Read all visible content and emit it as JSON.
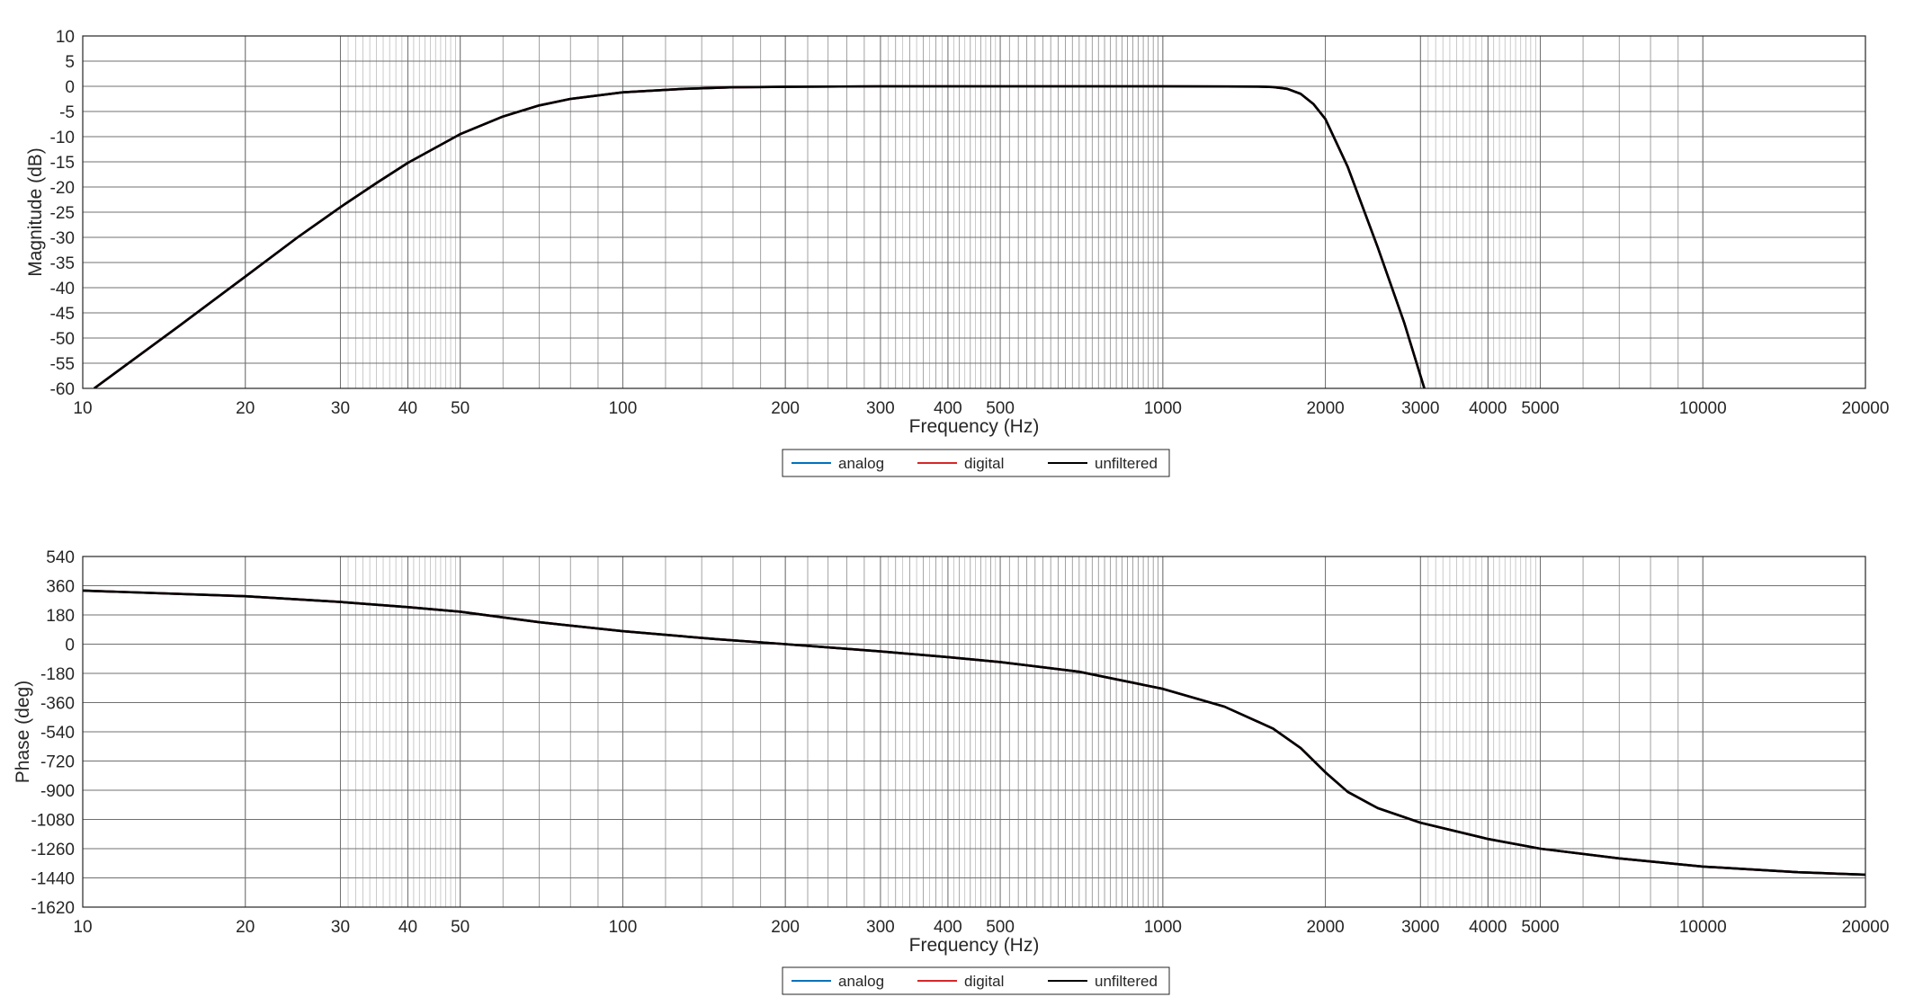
{
  "chart_data": [
    {
      "type": "line",
      "xlabel": "Frequency (Hz)",
      "ylabel": "Magnitude (dB)",
      "xscale": "log",
      "xlim": [
        10,
        20000
      ],
      "ylim": [
        -60,
        10
      ],
      "grid": true,
      "legend_position": "bottom-center",
      "xticks": [
        10,
        20,
        30,
        40,
        50,
        100,
        200,
        300,
        400,
        500,
        1000,
        2000,
        3000,
        4000,
        5000,
        10000,
        20000
      ],
      "xtick_labels": [
        "10",
        "20",
        "30",
        "40",
        "50",
        "100",
        "200",
        "300",
        "400",
        "500",
        "1000",
        "2000",
        "3000",
        "4000",
        "5000",
        "10000",
        "20000"
      ],
      "yticks": [
        10,
        5,
        0,
        -5,
        -10,
        -15,
        -20,
        -25,
        -30,
        -35,
        -40,
        -45,
        -50,
        -55,
        -60
      ],
      "ytick_labels": [
        "10",
        "5",
        "0",
        "-5",
        "-10",
        "-15",
        "-20",
        "-25",
        "-30",
        "-35",
        "-40",
        "-45",
        "-50",
        "-55",
        "-60"
      ],
      "series": [
        {
          "name": "analog",
          "color": "#0072bd",
          "x": [
            10.5,
            15,
            20,
            25,
            30,
            35,
            40,
            50,
            60,
            70,
            80,
            100,
            130,
            160,
            200,
            300,
            500,
            1000,
            1500,
            1600,
            1700,
            1800,
            1900,
            2000,
            2200,
            2500,
            2800,
            3050
          ],
          "y": [
            -60,
            -47.8,
            -37.8,
            -30,
            -24,
            -19.2,
            -15.2,
            -9.5,
            -6,
            -3.8,
            -2.5,
            -1.2,
            -0.5,
            -0.2,
            -0.1,
            0,
            0,
            0,
            -0.05,
            -0.15,
            -0.5,
            -1.5,
            -3.5,
            -6.5,
            -16,
            -32,
            -47,
            -60
          ]
        },
        {
          "name": "digital",
          "color": "#d62728",
          "x": [
            10.5,
            15,
            20,
            25,
            30,
            35,
            40,
            50,
            60,
            70,
            80,
            100,
            130,
            160,
            200,
            300,
            500,
            1000,
            1500,
            1600,
            1700,
            1800,
            1900,
            2000,
            2200,
            2500,
            2800,
            3050
          ],
          "y": [
            -60,
            -47.8,
            -37.8,
            -30,
            -24,
            -19.2,
            -15.2,
            -9.5,
            -6,
            -3.8,
            -2.5,
            -1.2,
            -0.5,
            -0.2,
            -0.1,
            0,
            0,
            0,
            -0.05,
            -0.15,
            -0.5,
            -1.5,
            -3.5,
            -6.5,
            -16,
            -32,
            -47,
            -60
          ]
        },
        {
          "name": "unfiltered",
          "color": "#000000",
          "x": [
            10.5,
            15,
            20,
            25,
            30,
            35,
            40,
            50,
            60,
            70,
            80,
            100,
            130,
            160,
            200,
            300,
            500,
            1000,
            1500,
            1600,
            1700,
            1800,
            1900,
            2000,
            2200,
            2500,
            2800,
            3050
          ],
          "y": [
            -60,
            -47.8,
            -37.8,
            -30,
            -24,
            -19.2,
            -15.2,
            -9.5,
            -6,
            -3.8,
            -2.5,
            -1.2,
            -0.5,
            -0.2,
            -0.1,
            0,
            0,
            0,
            -0.05,
            -0.15,
            -0.5,
            -1.5,
            -3.5,
            -6.5,
            -16,
            -32,
            -47,
            -60
          ]
        }
      ],
      "legend": {
        "entries": [
          "analog",
          "digital",
          "unfiltered"
        ]
      }
    },
    {
      "type": "line",
      "xlabel": "Frequency (Hz)",
      "ylabel": "Phase (deg)",
      "xscale": "log",
      "xlim": [
        10,
        20000
      ],
      "ylim": [
        -1620,
        540
      ],
      "grid": true,
      "legend_position": "bottom-center",
      "xticks": [
        10,
        20,
        30,
        40,
        50,
        100,
        200,
        300,
        400,
        500,
        1000,
        2000,
        3000,
        4000,
        5000,
        10000,
        20000
      ],
      "xtick_labels": [
        "10",
        "20",
        "30",
        "40",
        "50",
        "100",
        "200",
        "300",
        "400",
        "500",
        "1000",
        "2000",
        "3000",
        "4000",
        "5000",
        "10000",
        "20000"
      ],
      "yticks": [
        540,
        360,
        180,
        0,
        -180,
        -360,
        -540,
        -720,
        -900,
        -1080,
        -1260,
        -1440,
        -1620
      ],
      "ytick_labels": [
        "540",
        "360",
        "180",
        "0",
        "-180",
        "-360",
        "-540",
        "-720",
        "-900",
        "-1080",
        "-1260",
        "-1440",
        "-1620"
      ],
      "series": [
        {
          "name": "analog",
          "color": "#0072bd",
          "x": [
            10,
            20,
            30,
            40,
            50,
            70,
            100,
            150,
            200,
            300,
            400,
            500,
            700,
            1000,
            1300,
            1600,
            1800,
            2000,
            2200,
            2500,
            3000,
            4000,
            5000,
            7000,
            10000,
            15000,
            20000
          ],
          "y": [
            330,
            295,
            260,
            228,
            200,
            135,
            80,
            30,
            0,
            -45,
            -80,
            -110,
            -170,
            -275,
            -385,
            -520,
            -640,
            -790,
            -910,
            -1010,
            -1100,
            -1200,
            -1260,
            -1320,
            -1370,
            -1405,
            -1420
          ]
        },
        {
          "name": "digital",
          "color": "#d62728",
          "x": [
            10,
            20,
            30,
            40,
            50,
            70,
            100,
            150,
            200,
            300,
            400,
            500,
            700,
            1000,
            1300,
            1600,
            1800,
            2000,
            2200,
            2500,
            3000,
            4000,
            5000,
            7000,
            10000,
            15000,
            20000
          ],
          "y": [
            330,
            295,
            260,
            228,
            200,
            135,
            80,
            30,
            0,
            -45,
            -80,
            -110,
            -170,
            -275,
            -385,
            -520,
            -640,
            -790,
            -910,
            -1010,
            -1100,
            -1200,
            -1260,
            -1320,
            -1370,
            -1405,
            -1420
          ]
        },
        {
          "name": "unfiltered",
          "color": "#000000",
          "x": [
            10,
            20,
            30,
            40,
            50,
            70,
            100,
            150,
            200,
            300,
            400,
            500,
            700,
            1000,
            1300,
            1600,
            1800,
            2000,
            2200,
            2500,
            3000,
            4000,
            5000,
            7000,
            10000,
            15000,
            20000
          ],
          "y": [
            330,
            295,
            260,
            228,
            200,
            135,
            80,
            30,
            0,
            -45,
            -80,
            -110,
            -170,
            -275,
            -385,
            -520,
            -640,
            -790,
            -910,
            -1010,
            -1100,
            -1200,
            -1260,
            -1320,
            -1370,
            -1405,
            -1420
          ]
        }
      ],
      "legend": {
        "entries": [
          "analog",
          "digital",
          "unfiltered"
        ]
      }
    }
  ]
}
